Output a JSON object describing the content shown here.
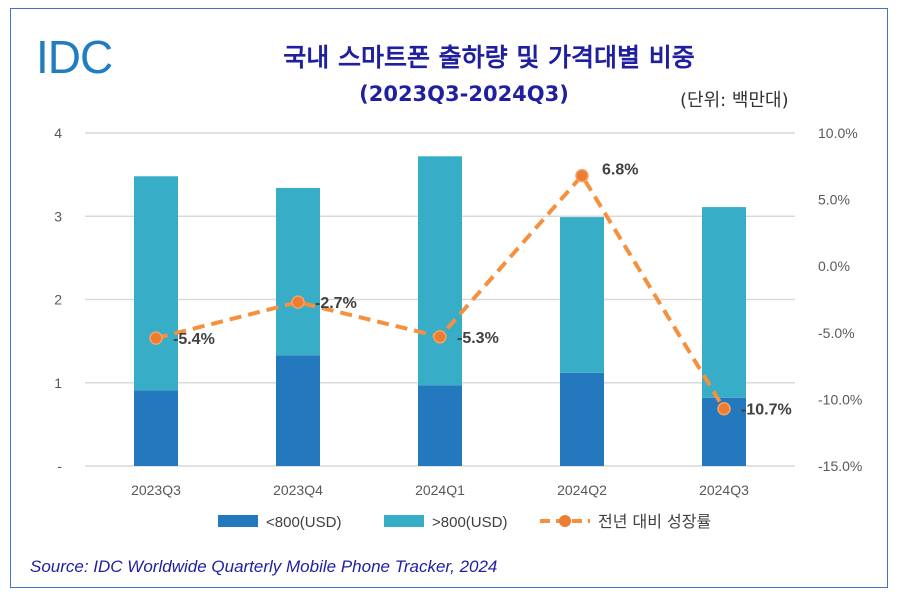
{
  "logo": "IDC",
  "title": "국내 스마트폰 출하량 및 가격대별 비중",
  "subtitle": "(2023Q3-2024Q3)",
  "unit": "(단위: 백만대)",
  "source": "Source: IDC Worldwide Quarterly Mobile Phone Tracker, 2024",
  "chart_data": {
    "type": "bar",
    "stacked": true,
    "categories": [
      "2023Q3",
      "2023Q4",
      "2024Q1",
      "2024Q2",
      "2024Q3"
    ],
    "series": [
      {
        "name": "<800(USD)",
        "type": "bar",
        "color": "#2478bd",
        "values": [
          0.91,
          1.33,
          0.97,
          1.12,
          0.82
        ]
      },
      {
        "name": ">800(USD)",
        "type": "bar",
        "color": "#38adc8",
        "values": [
          2.57,
          2.01,
          2.75,
          1.87,
          2.29
        ]
      },
      {
        "name": "전년 대비 성장률",
        "type": "line",
        "axis": "right",
        "color": "#f5913e",
        "values": [
          -5.4,
          -2.7,
          -5.3,
          6.8,
          -10.7
        ],
        "labels": [
          "-5.4%",
          "-2.7%",
          "-5.3%",
          "6.8%",
          "-10.7%"
        ]
      }
    ],
    "left_axis": {
      "ylim": [
        0,
        4
      ],
      "ticks": [
        "-",
        "1",
        "2",
        "3",
        "4"
      ]
    },
    "right_axis": {
      "ylim": [
        -15,
        10
      ],
      "ticks": [
        "-15.0%",
        "-10.0%",
        "-5.0%",
        "0.0%",
        "5.0%",
        "10.0%"
      ]
    },
    "grid": true,
    "legend": "bottom"
  }
}
